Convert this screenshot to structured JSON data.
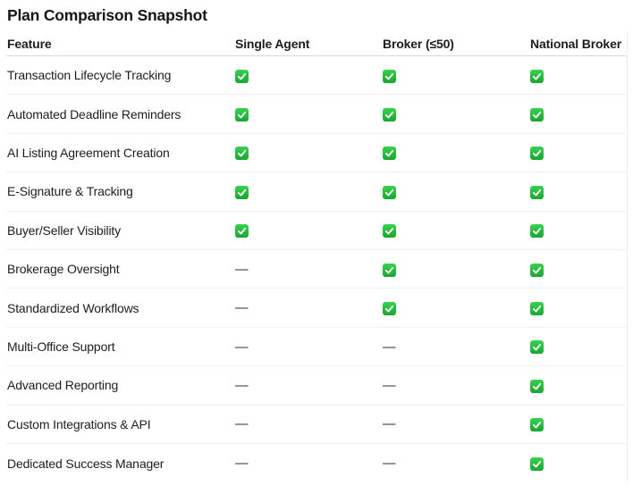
{
  "title": "Plan Comparison Snapshot",
  "table": {
    "columns": [
      "Feature",
      "Single Agent",
      "Broker (≤50)",
      "National Broker"
    ],
    "dash_character": "—",
    "rows": [
      {
        "feature": "Transaction Lifecycle Tracking",
        "values": [
          "check",
          "check",
          "check"
        ]
      },
      {
        "feature": "Automated Deadline Reminders",
        "values": [
          "check",
          "check",
          "check"
        ]
      },
      {
        "feature": "AI Listing Agreement Creation",
        "values": [
          "check",
          "check",
          "check"
        ]
      },
      {
        "feature": "E-Signature & Tracking",
        "values": [
          "check",
          "check",
          "check"
        ]
      },
      {
        "feature": "Buyer/Seller Visibility",
        "values": [
          "check",
          "check",
          "check"
        ]
      },
      {
        "feature": "Brokerage Oversight",
        "values": [
          "dash",
          "check",
          "check"
        ]
      },
      {
        "feature": "Standardized Workflows",
        "values": [
          "dash",
          "check",
          "check"
        ]
      },
      {
        "feature": "Multi-Office Support",
        "values": [
          "dash",
          "dash",
          "check"
        ]
      },
      {
        "feature": "Advanced Reporting",
        "values": [
          "dash",
          "dash",
          "check"
        ]
      },
      {
        "feature": "Custom Integrations & API",
        "values": [
          "dash",
          "dash",
          "check"
        ]
      },
      {
        "feature": "Dedicated Success Manager",
        "values": [
          "dash",
          "dash",
          "check"
        ]
      }
    ]
  },
  "icons": {
    "check": "check-icon",
    "dash": "dash-mark"
  },
  "colors": {
    "check_green_top": "#38d24e",
    "check_green_bottom": "#1aa531",
    "check_mark": "#ffffff",
    "header_divider": "#d8d8d8",
    "row_divider": "#f2f2f2",
    "text": "#1d1d1f"
  }
}
